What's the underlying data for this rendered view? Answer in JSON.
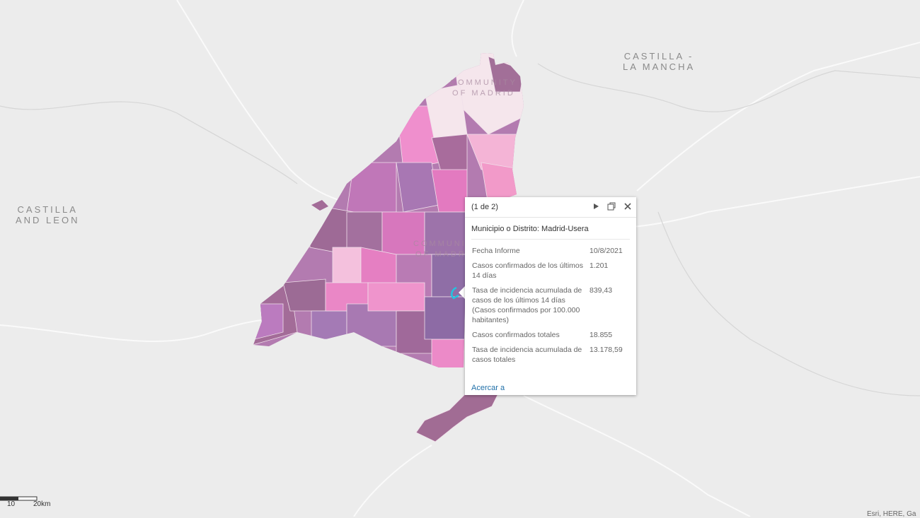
{
  "map_labels": [
    {
      "lines": [
        "CASTILLA -",
        "LA MANCHA"
      ]
    },
    {
      "lines": [
        "CASTILLA",
        "AND LEON"
      ]
    },
    {
      "lines": [
        "COMMUNITY",
        "OF MADRID"
      ]
    },
    {
      "lines": [
        "COMMUNITY",
        "OF MADRID"
      ]
    }
  ],
  "popup": {
    "counter": "(1 de 2)",
    "title": "Municipio o Distrito: Madrid-Usera",
    "rows": [
      [
        "Fecha Informe",
        "10/8/2021"
      ],
      [
        "Casos confirmados de los últimos 14 días",
        "1.201"
      ],
      [
        "Tasa de incidencia acumulada de casos de los últimos 14 días (Casos confirmados por 100.000 habitantes)",
        "839,43"
      ],
      [
        "Casos confirmados totales",
        "18.855"
      ],
      [
        "Tasa de incidencia acumulada de casos totales",
        "13.178,59"
      ]
    ],
    "link": "Acercar a"
  },
  "scale": {
    "labels": [
      "10",
      "20km"
    ]
  },
  "attribution": "Esri, HERE, Ga"
}
